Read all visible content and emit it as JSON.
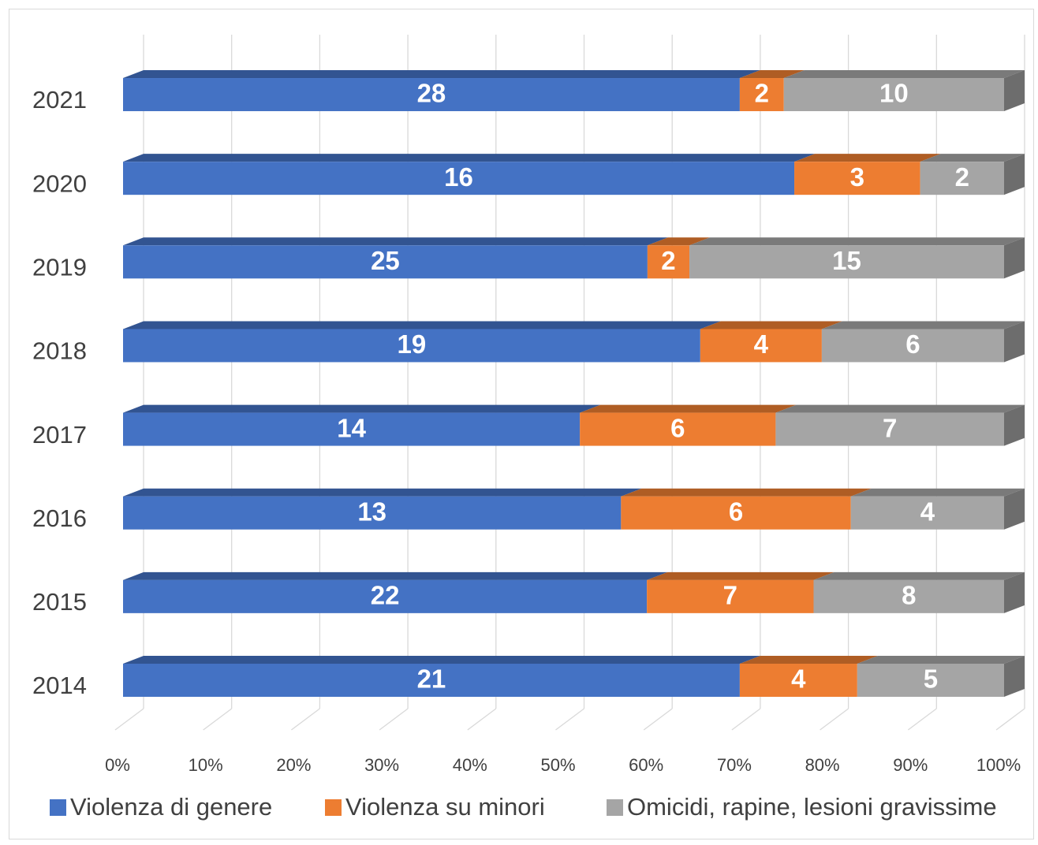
{
  "chart_data": {
    "type": "bar",
    "orientation": "horizontal",
    "stacking": "percent",
    "style": "3d",
    "categories": [
      "2014",
      "2015",
      "2016",
      "2017",
      "2018",
      "2019",
      "2020",
      "2021"
    ],
    "series": [
      {
        "name": "Violenza di genere",
        "color": "#4472c4",
        "values": [
          21,
          22,
          13,
          14,
          19,
          25,
          16,
          28
        ]
      },
      {
        "name": "Violenza su minori",
        "color": "#ed7d31",
        "values": [
          4,
          7,
          6,
          6,
          4,
          2,
          3,
          2
        ]
      },
      {
        "name": "Omicidi, rapine, lesioni gravissime",
        "color": "#a5a5a5",
        "values": [
          5,
          8,
          4,
          7,
          6,
          15,
          2,
          10
        ]
      }
    ],
    "x_ticks": [
      "0%",
      "10%",
      "20%",
      "30%",
      "40%",
      "50%",
      "60%",
      "70%",
      "80%",
      "90%",
      "100%"
    ],
    "xlim": [
      0,
      100
    ],
    "grid": true,
    "legend": "bottom",
    "data_labels": true
  }
}
